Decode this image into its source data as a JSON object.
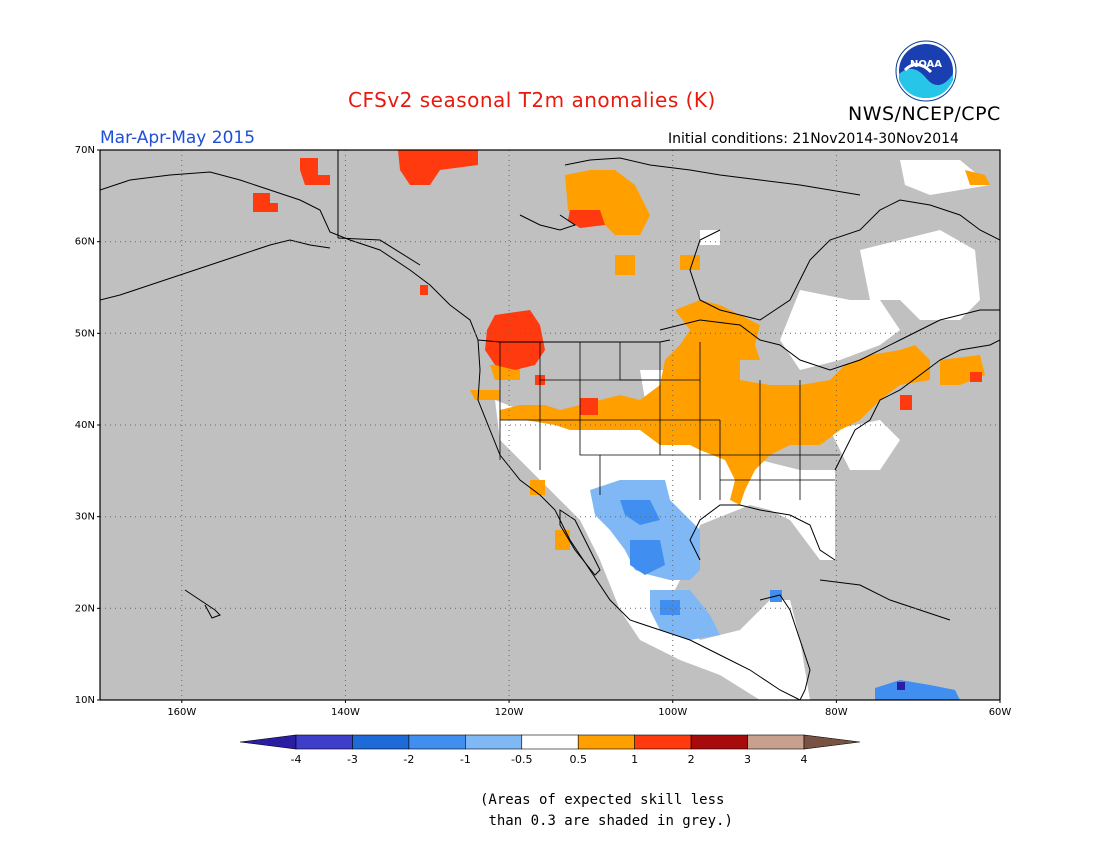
{
  "header": {
    "title": "CFSv2 seasonal T2m anomalies (K)",
    "season": "Mar-Apr-May 2015",
    "initial_conditions": "Initial conditions: 21Nov2014-30Nov2014",
    "agency": "NWS/NCEP/CPC",
    "logo_text": "NOAA"
  },
  "map": {
    "lat_ticks": [
      "70N",
      "60N",
      "50N",
      "40N",
      "30N",
      "20N",
      "10N"
    ],
    "lon_ticks": [
      "160W",
      "140W",
      "120W",
      "100W",
      "80W",
      "60W"
    ],
    "lat_range": [
      10,
      70
    ],
    "lon_range": [
      -170,
      -60
    ],
    "grid": "dotted",
    "ocean_color": "#c0c0c0"
  },
  "colorbar": {
    "labels": [
      "-4",
      "-3",
      "-2",
      "-1",
      "-0.5",
      "0.5",
      "1",
      "2",
      "3",
      "4"
    ],
    "colors": [
      "#2a1fa3",
      "#3d3ec9",
      "#1e6ad8",
      "#3f8ef0",
      "#7fb8f5",
      "#ffffff",
      "#ff9f00",
      "#ff3a0f",
      "#a80b0b",
      "#c8a08e",
      "#7a5244"
    ]
  },
  "footnote": {
    "line1": "(Areas of expected skill less",
    "line2": "than 0.3 are shaded in grey.)"
  }
}
